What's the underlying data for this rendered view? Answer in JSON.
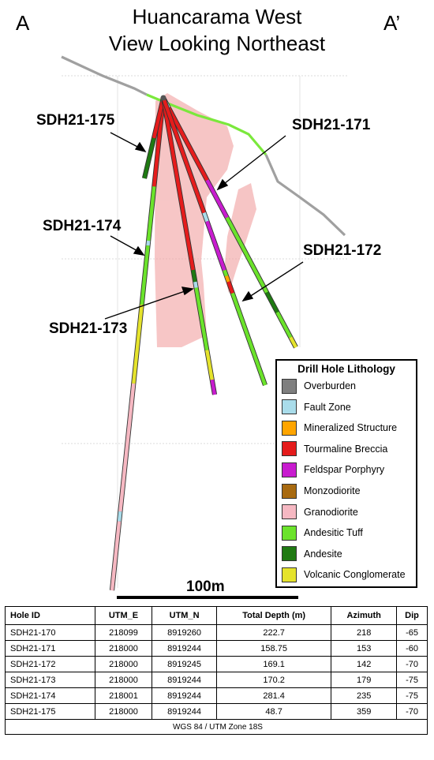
{
  "header": {
    "title_line1": "Huancarama West",
    "title_line2": "View Looking Northeast",
    "left_marker": "A",
    "right_marker": "A’"
  },
  "colors": {
    "overburden": "#7f7f7f",
    "fault_zone": "#a9dcea",
    "mineralized_structure": "#ffa500",
    "tourmaline_breccia": "#e51c1c",
    "feldspar_porphyry": "#c81ccf",
    "monzodiorite": "#a86a10",
    "granodiorite": "#f6b8c2",
    "andesitic_tuff": "#6be32b",
    "andesite": "#1f7a12",
    "volcanic_conglomerate": "#e5e32c",
    "topography_gray": "#a0a0a0",
    "topography_green": "#7be83c",
    "intrusive_body": "#f2a3a3"
  },
  "holes": [
    {
      "id": "SDH21-175"
    },
    {
      "id": "SDH21-171"
    },
    {
      "id": "SDH21-174"
    },
    {
      "id": "SDH21-172"
    },
    {
      "id": "SDH21-173"
    }
  ],
  "legend": {
    "title": "Drill Hole Lithology",
    "items": [
      {
        "label": "Overburden",
        "color_key": "overburden"
      },
      {
        "label": "Fault Zone",
        "color_key": "fault_zone"
      },
      {
        "label": "Mineralized Structure",
        "color_key": "mineralized_structure"
      },
      {
        "label": "Tourmaline Breccia",
        "color_key": "tourmaline_breccia"
      },
      {
        "label": "Feldspar Porphyry",
        "color_key": "feldspar_porphyry"
      },
      {
        "label": "Monzodiorite",
        "color_key": "monzodiorite"
      },
      {
        "label": "Granodiorite",
        "color_key": "granodiorite"
      },
      {
        "label": "Andesitic Tuff",
        "color_key": "andesitic_tuff"
      },
      {
        "label": "Andesite",
        "color_key": "andesite"
      },
      {
        "label": "Volcanic Conglomerate",
        "color_key": "volcanic_conglomerate"
      }
    ]
  },
  "scale": {
    "label": "100m"
  },
  "table": {
    "headers": [
      "Hole ID",
      "UTM_E",
      "UTM_N",
      "Total Depth (m)",
      "Azimuth",
      "Dip"
    ],
    "rows": [
      [
        "SDH21-170",
        "218099",
        "8919260",
        "222.7",
        "218",
        "-65"
      ],
      [
        "SDH21-171",
        "218000",
        "8919244",
        "158.75",
        "153",
        "-60"
      ],
      [
        "SDH21-172",
        "218000",
        "8919245",
        "169.1",
        "142",
        "-70"
      ],
      [
        "SDH21-173",
        "218000",
        "8919244",
        "170.2",
        "179",
        "-75"
      ],
      [
        "SDH21-174",
        "218001",
        "8919244",
        "281.4",
        "235",
        "-75"
      ],
      [
        "SDH21-175",
        "218000",
        "8919244",
        "48.7",
        "359",
        "-70"
      ]
    ],
    "footer": "WGS 84 / UTM Zone 18S"
  }
}
